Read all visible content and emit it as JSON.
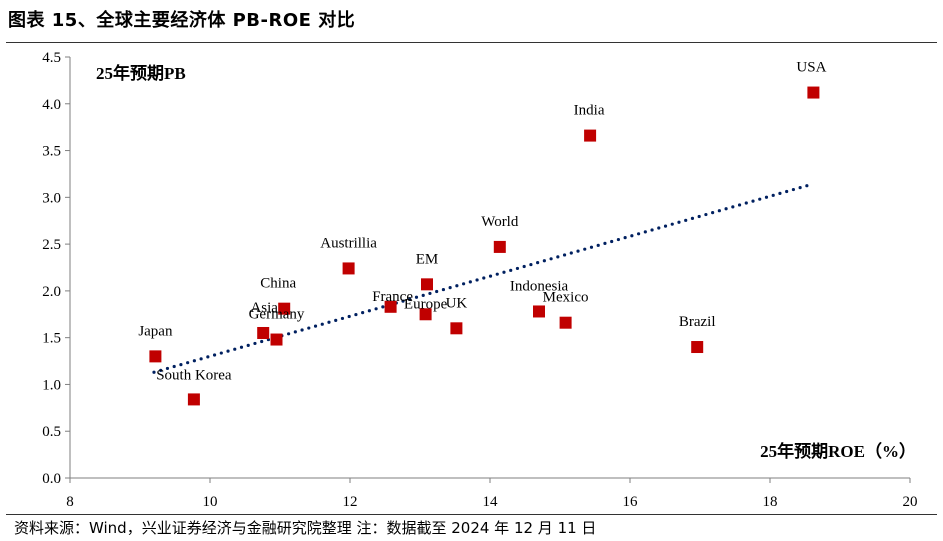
{
  "header": {
    "title": "图表 15、全球主要经济体 PB-ROE 对比"
  },
  "footer": {
    "source": "资料来源：Wind，兴业证券经济与金融研究院整理    注：数据截至 2024 年 12 月 11 日"
  },
  "chart_data": {
    "type": "scatter",
    "title": "图表 15、全球主要经济体 PB-ROE 对比",
    "xlabel": "25年预期ROE（%）",
    "ylabel": "25年预期PB",
    "xlim": [
      8,
      20
    ],
    "ylim": [
      0,
      4.5
    ],
    "xticks": [
      8,
      10,
      12,
      14,
      16,
      18,
      20
    ],
    "yticks": [
      0.0,
      0.5,
      1.0,
      1.5,
      2.0,
      2.5,
      3.0,
      3.5,
      4.0,
      4.5
    ],
    "marker_color": "#C00000",
    "trendline_color": "#002060",
    "trendline": {
      "style": "dotted",
      "x": [
        9.2,
        18.6
      ],
      "y": [
        1.13,
        3.14
      ]
    },
    "points": [
      {
        "name": "USA",
        "x": 18.62,
        "y": 4.12
      },
      {
        "name": "India",
        "x": 15.43,
        "y": 3.66
      },
      {
        "name": "World",
        "x": 14.14,
        "y": 2.47
      },
      {
        "name": "Austrillia",
        "x": 11.98,
        "y": 2.24
      },
      {
        "name": "EM",
        "x": 13.1,
        "y": 2.07
      },
      {
        "name": "France",
        "x": 12.58,
        "y": 1.83
      },
      {
        "name": "Europe",
        "x": 13.08,
        "y": 1.75
      },
      {
        "name": "UK",
        "x": 13.52,
        "y": 1.6
      },
      {
        "name": "China",
        "x": 11.06,
        "y": 1.81
      },
      {
        "name": "Asia",
        "x": 10.76,
        "y": 1.55
      },
      {
        "name": "Germany",
        "x": 10.95,
        "y": 1.48
      },
      {
        "name": "Indonesia",
        "x": 14.7,
        "y": 1.78
      },
      {
        "name": "Mexico",
        "x": 15.08,
        "y": 1.66
      },
      {
        "name": "Brazil",
        "x": 16.96,
        "y": 1.4
      },
      {
        "name": "Japan",
        "x": 9.22,
        "y": 1.3
      },
      {
        "name": "South Korea",
        "x": 9.77,
        "y": 0.84
      }
    ]
  }
}
